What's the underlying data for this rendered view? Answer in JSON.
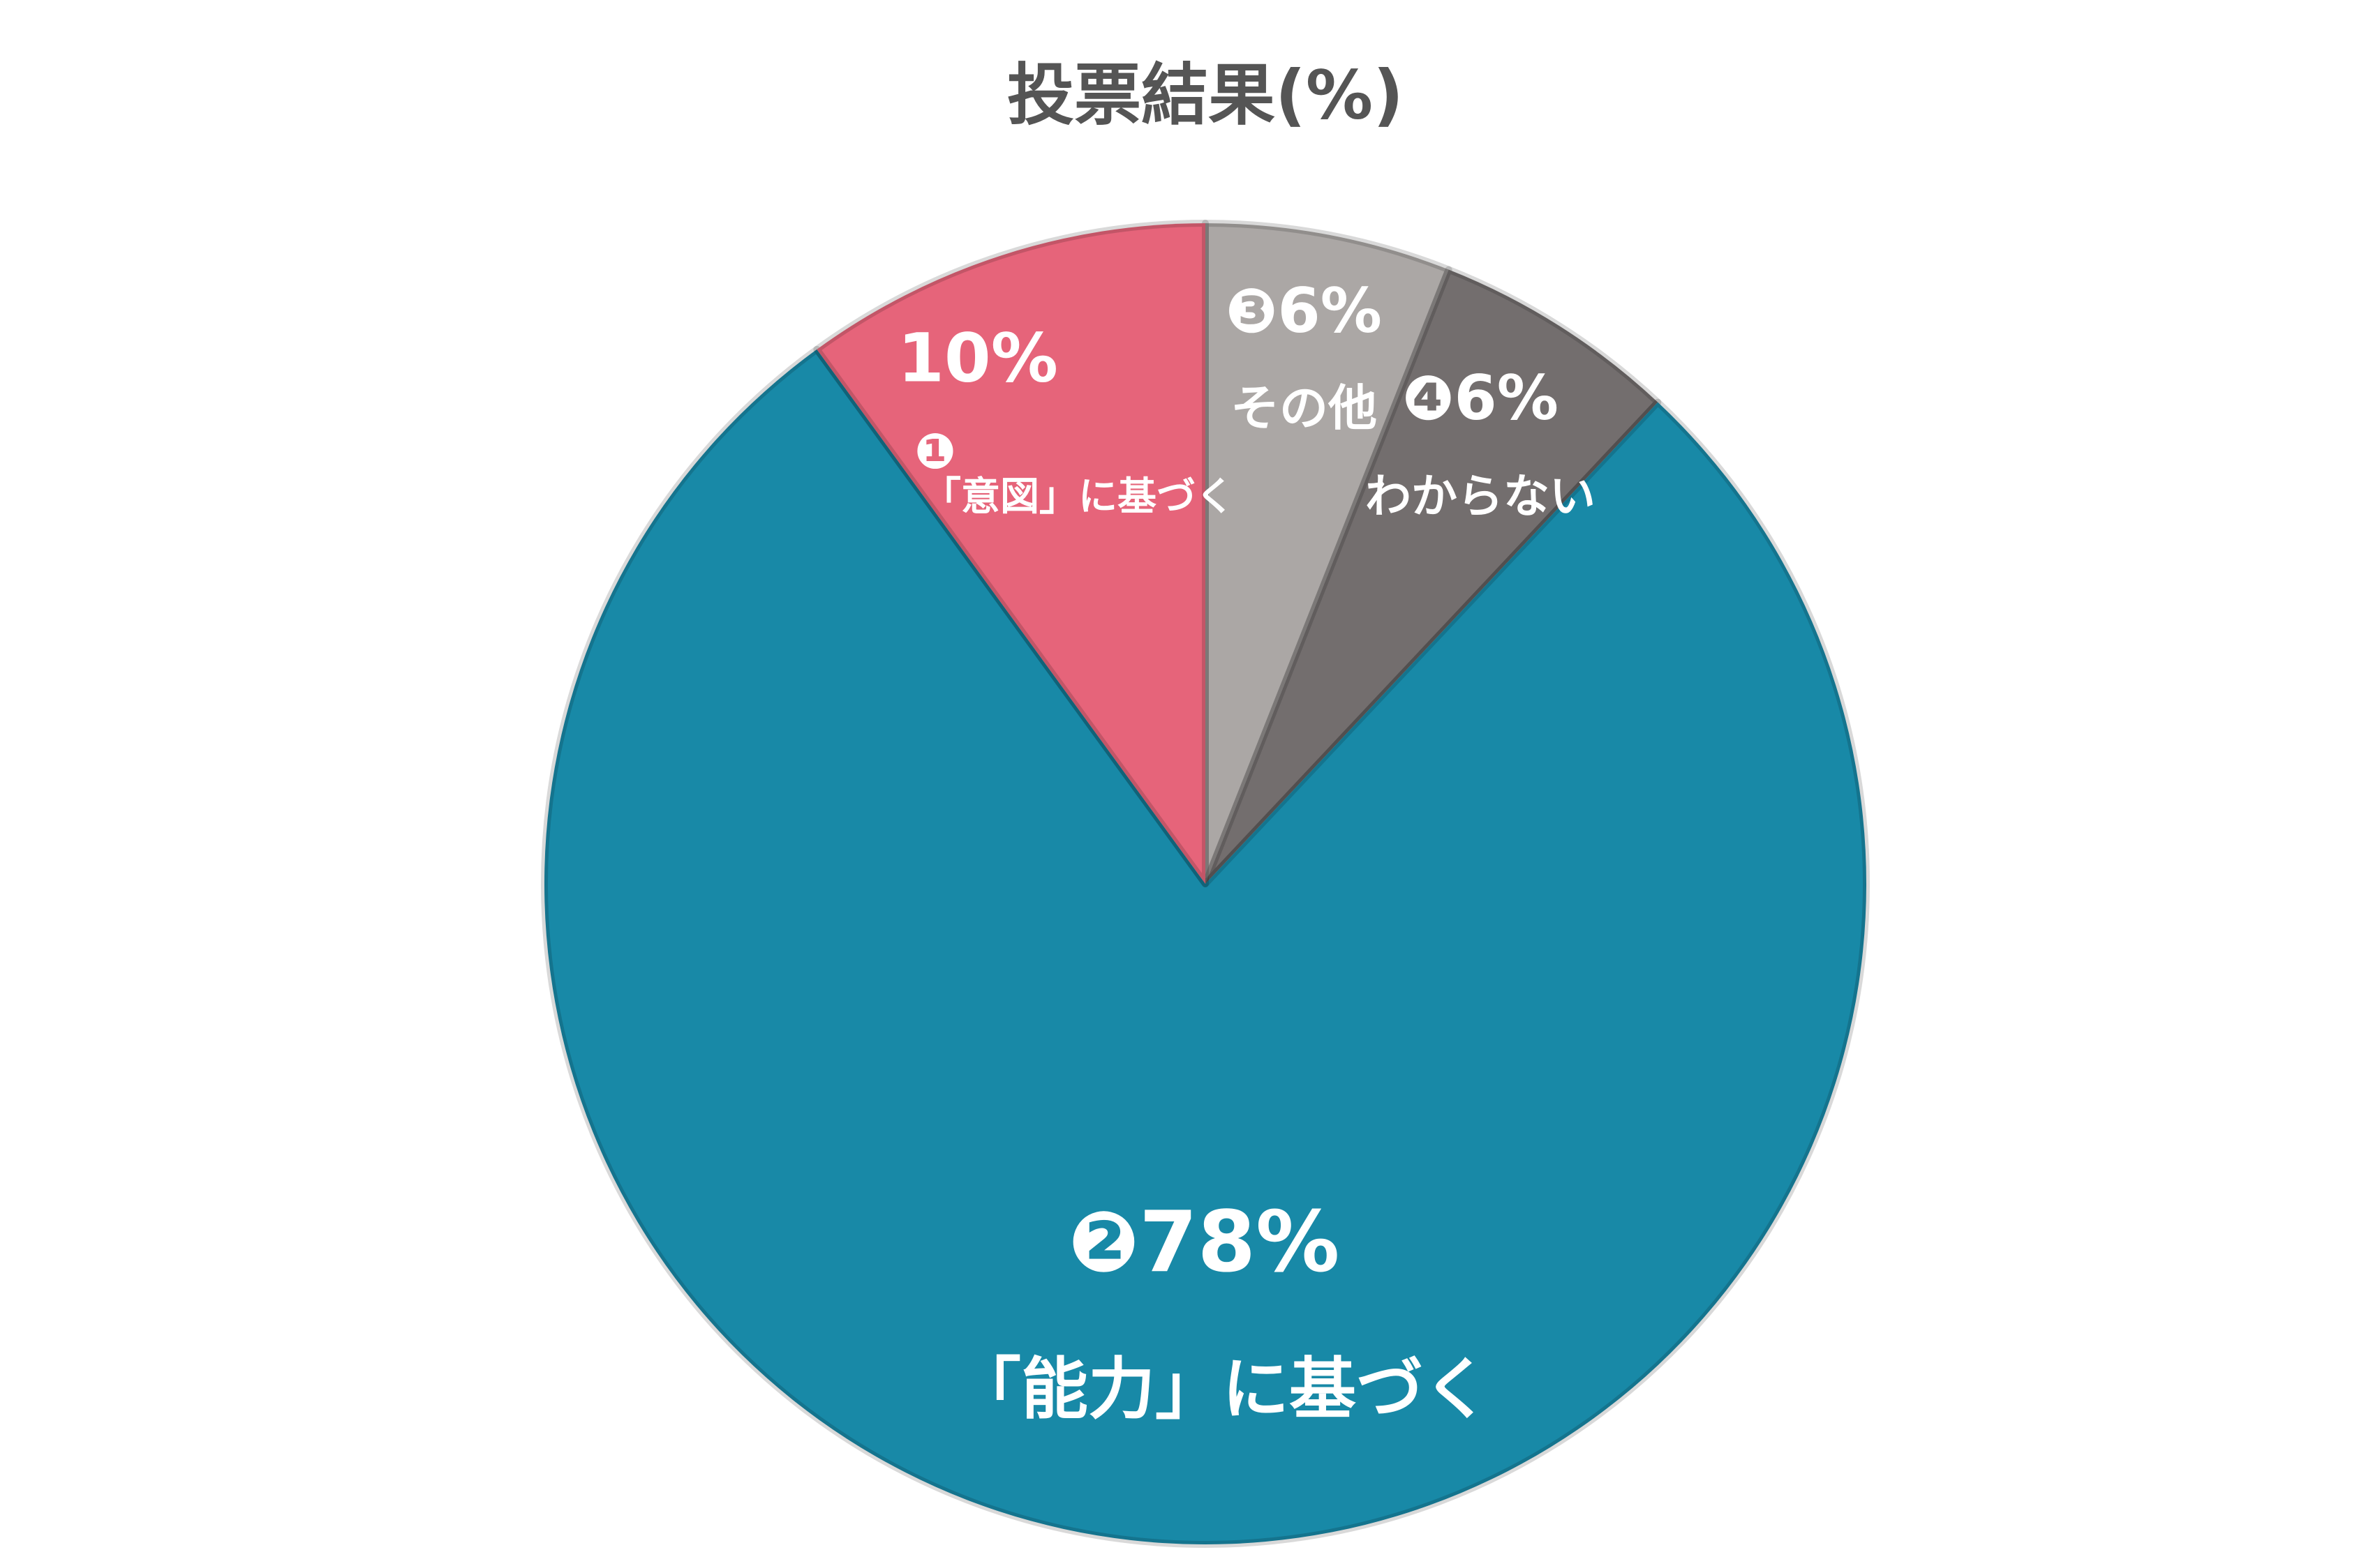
{
  "chart_data": {
    "type": "pie",
    "title": "投票結果(%)",
    "categories": [
      "その他",
      "わからない",
      "「能力」に基づく",
      "「意図」に基づく"
    ],
    "markers": [
      "❸",
      "❹",
      "❷",
      "❶"
    ],
    "values": [
      6,
      6,
      78,
      10
    ],
    "value_labels": [
      "6%",
      "6%",
      "78%",
      "10%"
    ],
    "colors": [
      "#aba7a5",
      "#736e6e",
      "#1889a7",
      "#e6647a"
    ]
  }
}
